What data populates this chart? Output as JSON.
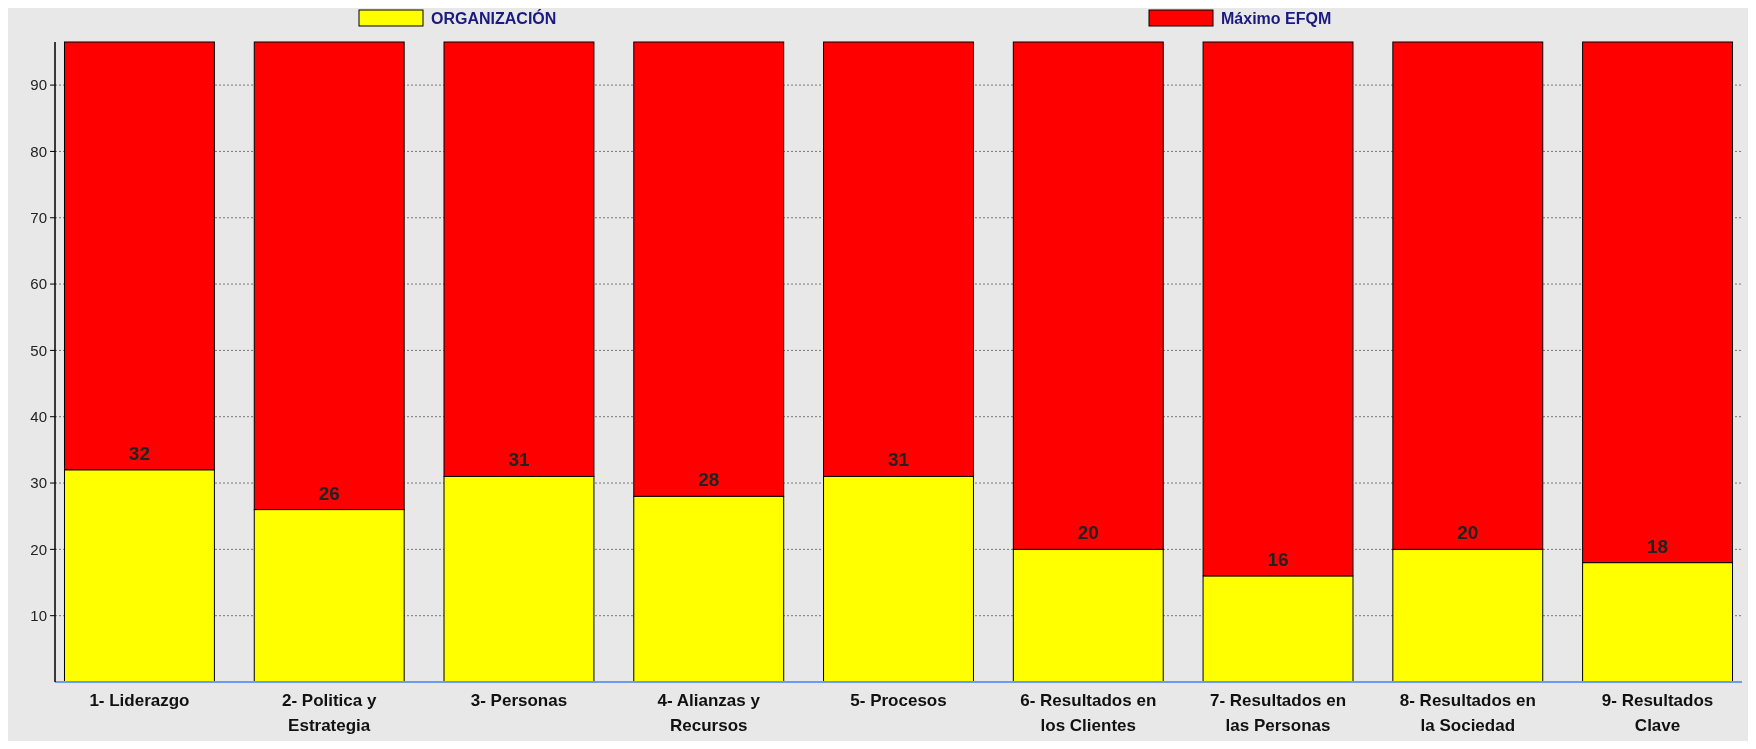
{
  "chart_data": {
    "type": "bar",
    "stacked": true,
    "categories": [
      "1- Liderazgo",
      "2- Politica y Estrategia",
      "3- Personas",
      "4- Alianzas y Recursos",
      "5- Procesos",
      "6- Resultados en los Clientes",
      "7- Resultados en las Personas",
      "8- Resultados en la Sociedad",
      "9- Resultados Clave"
    ],
    "series": [
      {
        "name": "ORGANIZACIÓN",
        "color": "#ffff00",
        "values": [
          32,
          26,
          31,
          28,
          31,
          20,
          16,
          20,
          18
        ],
        "value_labels": [
          "32",
          "26",
          "31",
          "28",
          "31",
          "20",
          "16",
          "20",
          "18"
        ]
      },
      {
        "name": "Máximo EFQM",
        "color": "#ff0000",
        "values": [
          64.5,
          70.5,
          65.5,
          68.5,
          65.5,
          76.5,
          80.5,
          76.5,
          78.5
        ]
      }
    ],
    "ylim": [
      0,
      96.5
    ],
    "yticks": [
      10,
      20,
      30,
      40,
      50,
      60,
      70,
      80,
      90
    ],
    "grid": "y",
    "legend": "top"
  }
}
